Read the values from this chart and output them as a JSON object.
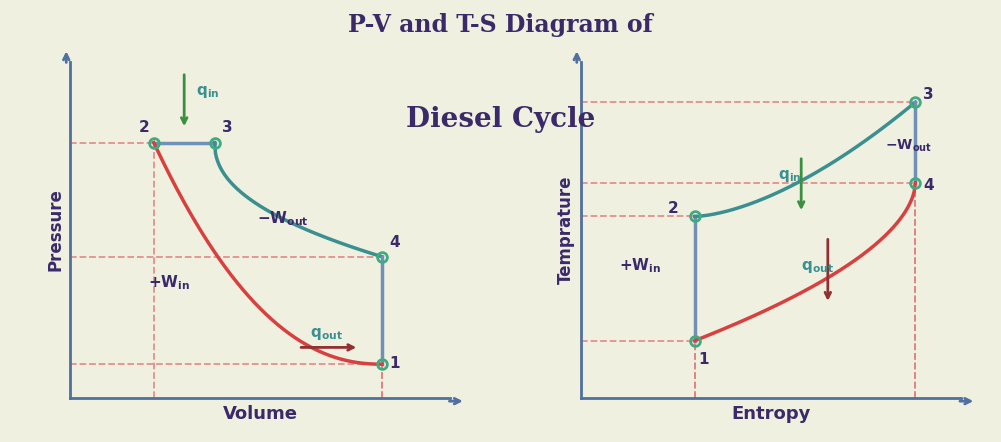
{
  "title_line1": "P-V and T-S Diagram of",
  "title_line2": "Diesel Cycle",
  "bg_color": "#f0f0e0",
  "title_color": "#3a2a6a",
  "axis_color": "#5070a0",
  "dashed_color": "#e08080",
  "curve_red": "#d84040",
  "curve_teal": "#3a9090",
  "curve_blue_line": "#7090b8",
  "point_color": "#40aa80",
  "label_color": "#3a2a6a",
  "green_arrow_color": "#3a9040",
  "red_arrow_color": "#903030",
  "annotation_teal": "#3a9090",
  "pv_points": {
    "1": [
      0.82,
      0.1
    ],
    "2": [
      0.22,
      0.76
    ],
    "3": [
      0.38,
      0.76
    ],
    "4": [
      0.82,
      0.42
    ]
  },
  "ts_points": {
    "1": [
      0.3,
      0.17
    ],
    "2": [
      0.3,
      0.54
    ],
    "3": [
      0.88,
      0.88
    ],
    "4": [
      0.88,
      0.64
    ]
  }
}
